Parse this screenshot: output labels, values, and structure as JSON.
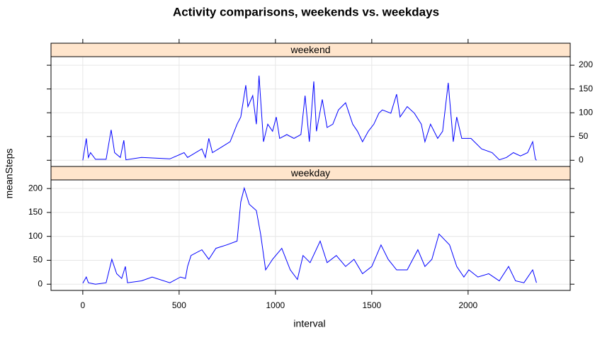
{
  "figure": {
    "title": "Activity comparisons, weekends vs. weekdays",
    "xlabel": "interval",
    "ylabel": "meanSteps"
  },
  "chart_data": [
    {
      "type": "line",
      "strip": "weekend",
      "color": "#0000ff",
      "xlim": [
        -165,
        2530
      ],
      "ylim": [
        -13,
        218
      ],
      "xticks": [
        0,
        500,
        1000,
        1500,
        2000
      ],
      "yticks": [
        0,
        50,
        100,
        150,
        200
      ],
      "ytick_labels": "right",
      "xtick_labels": false,
      "grid": true,
      "x": [
        0,
        18,
        29,
        40,
        66,
        121,
        147,
        165,
        195,
        213,
        224,
        305,
        452,
        526,
        544,
        618,
        636,
        654,
        673,
        717,
        765,
        801,
        820,
        846,
        857,
        882,
        901,
        915,
        938,
        960,
        985,
        1004,
        1022,
        1059,
        1096,
        1132,
        1154,
        1176,
        1199,
        1213,
        1243,
        1268,
        1298,
        1327,
        1364,
        1401,
        1426,
        1452,
        1482,
        1511,
        1537,
        1555,
        1599,
        1629,
        1647,
        1684,
        1721,
        1757,
        1776,
        1805,
        1842,
        1868,
        1897,
        1923,
        1941,
        1967,
        2015,
        2070,
        2125,
        2162,
        2199,
        2235,
        2272,
        2309,
        2335,
        2349,
        2355
      ],
      "values": [
        0,
        46,
        6,
        16,
        2,
        2,
        64,
        16,
        6,
        42,
        1,
        6,
        3,
        16,
        6,
        24,
        6,
        46,
        16,
        27,
        39,
        76,
        91,
        158,
        113,
        136,
        76,
        178,
        39,
        76,
        61,
        91,
        46,
        54,
        46,
        54,
        136,
        39,
        166,
        61,
        128,
        69,
        76,
        106,
        121,
        76,
        61,
        39,
        61,
        76,
        99,
        106,
        99,
        139,
        91,
        113,
        99,
        76,
        39,
        76,
        46,
        61,
        163,
        39,
        91,
        46,
        46,
        24,
        16,
        1,
        6,
        16,
        9,
        16,
        39,
        3,
        0
      ]
    },
    {
      "type": "line",
      "strip": "weekday",
      "color": "#0000ff",
      "xlim": [
        -165,
        2530
      ],
      "ylim": [
        -13,
        218
      ],
      "xticks": [
        0,
        500,
        1000,
        1500,
        2000
      ],
      "yticks": [
        0,
        50,
        100,
        150,
        200
      ],
      "ytick_labels": "left",
      "xtick_labels": true,
      "grid": true,
      "x": [
        0,
        18,
        29,
        66,
        121,
        151,
        176,
        202,
        221,
        232,
        305,
        360,
        452,
        507,
        533,
        544,
        562,
        618,
        654,
        691,
        746,
        801,
        820,
        838,
        864,
        901,
        923,
        949,
        985,
        1033,
        1077,
        1114,
        1143,
        1180,
        1232,
        1268,
        1316,
        1364,
        1408,
        1452,
        1500,
        1548,
        1585,
        1629,
        1684,
        1739,
        1776,
        1812,
        1849,
        1904,
        1941,
        1978,
        2004,
        2051,
        2107,
        2162,
        2210,
        2246,
        2290,
        2335,
        2355
      ],
      "values": [
        2,
        15,
        3,
        0,
        3,
        52,
        22,
        12,
        37,
        3,
        7,
        15,
        3,
        15,
        12,
        37,
        60,
        72,
        52,
        75,
        82,
        90,
        172,
        201,
        167,
        154,
        105,
        30,
        52,
        75,
        30,
        10,
        60,
        45,
        90,
        45,
        60,
        37,
        52,
        22,
        37,
        82,
        52,
        30,
        30,
        72,
        37,
        52,
        105,
        82,
        37,
        15,
        30,
        15,
        22,
        7,
        37,
        7,
        3,
        30,
        3
      ]
    }
  ]
}
